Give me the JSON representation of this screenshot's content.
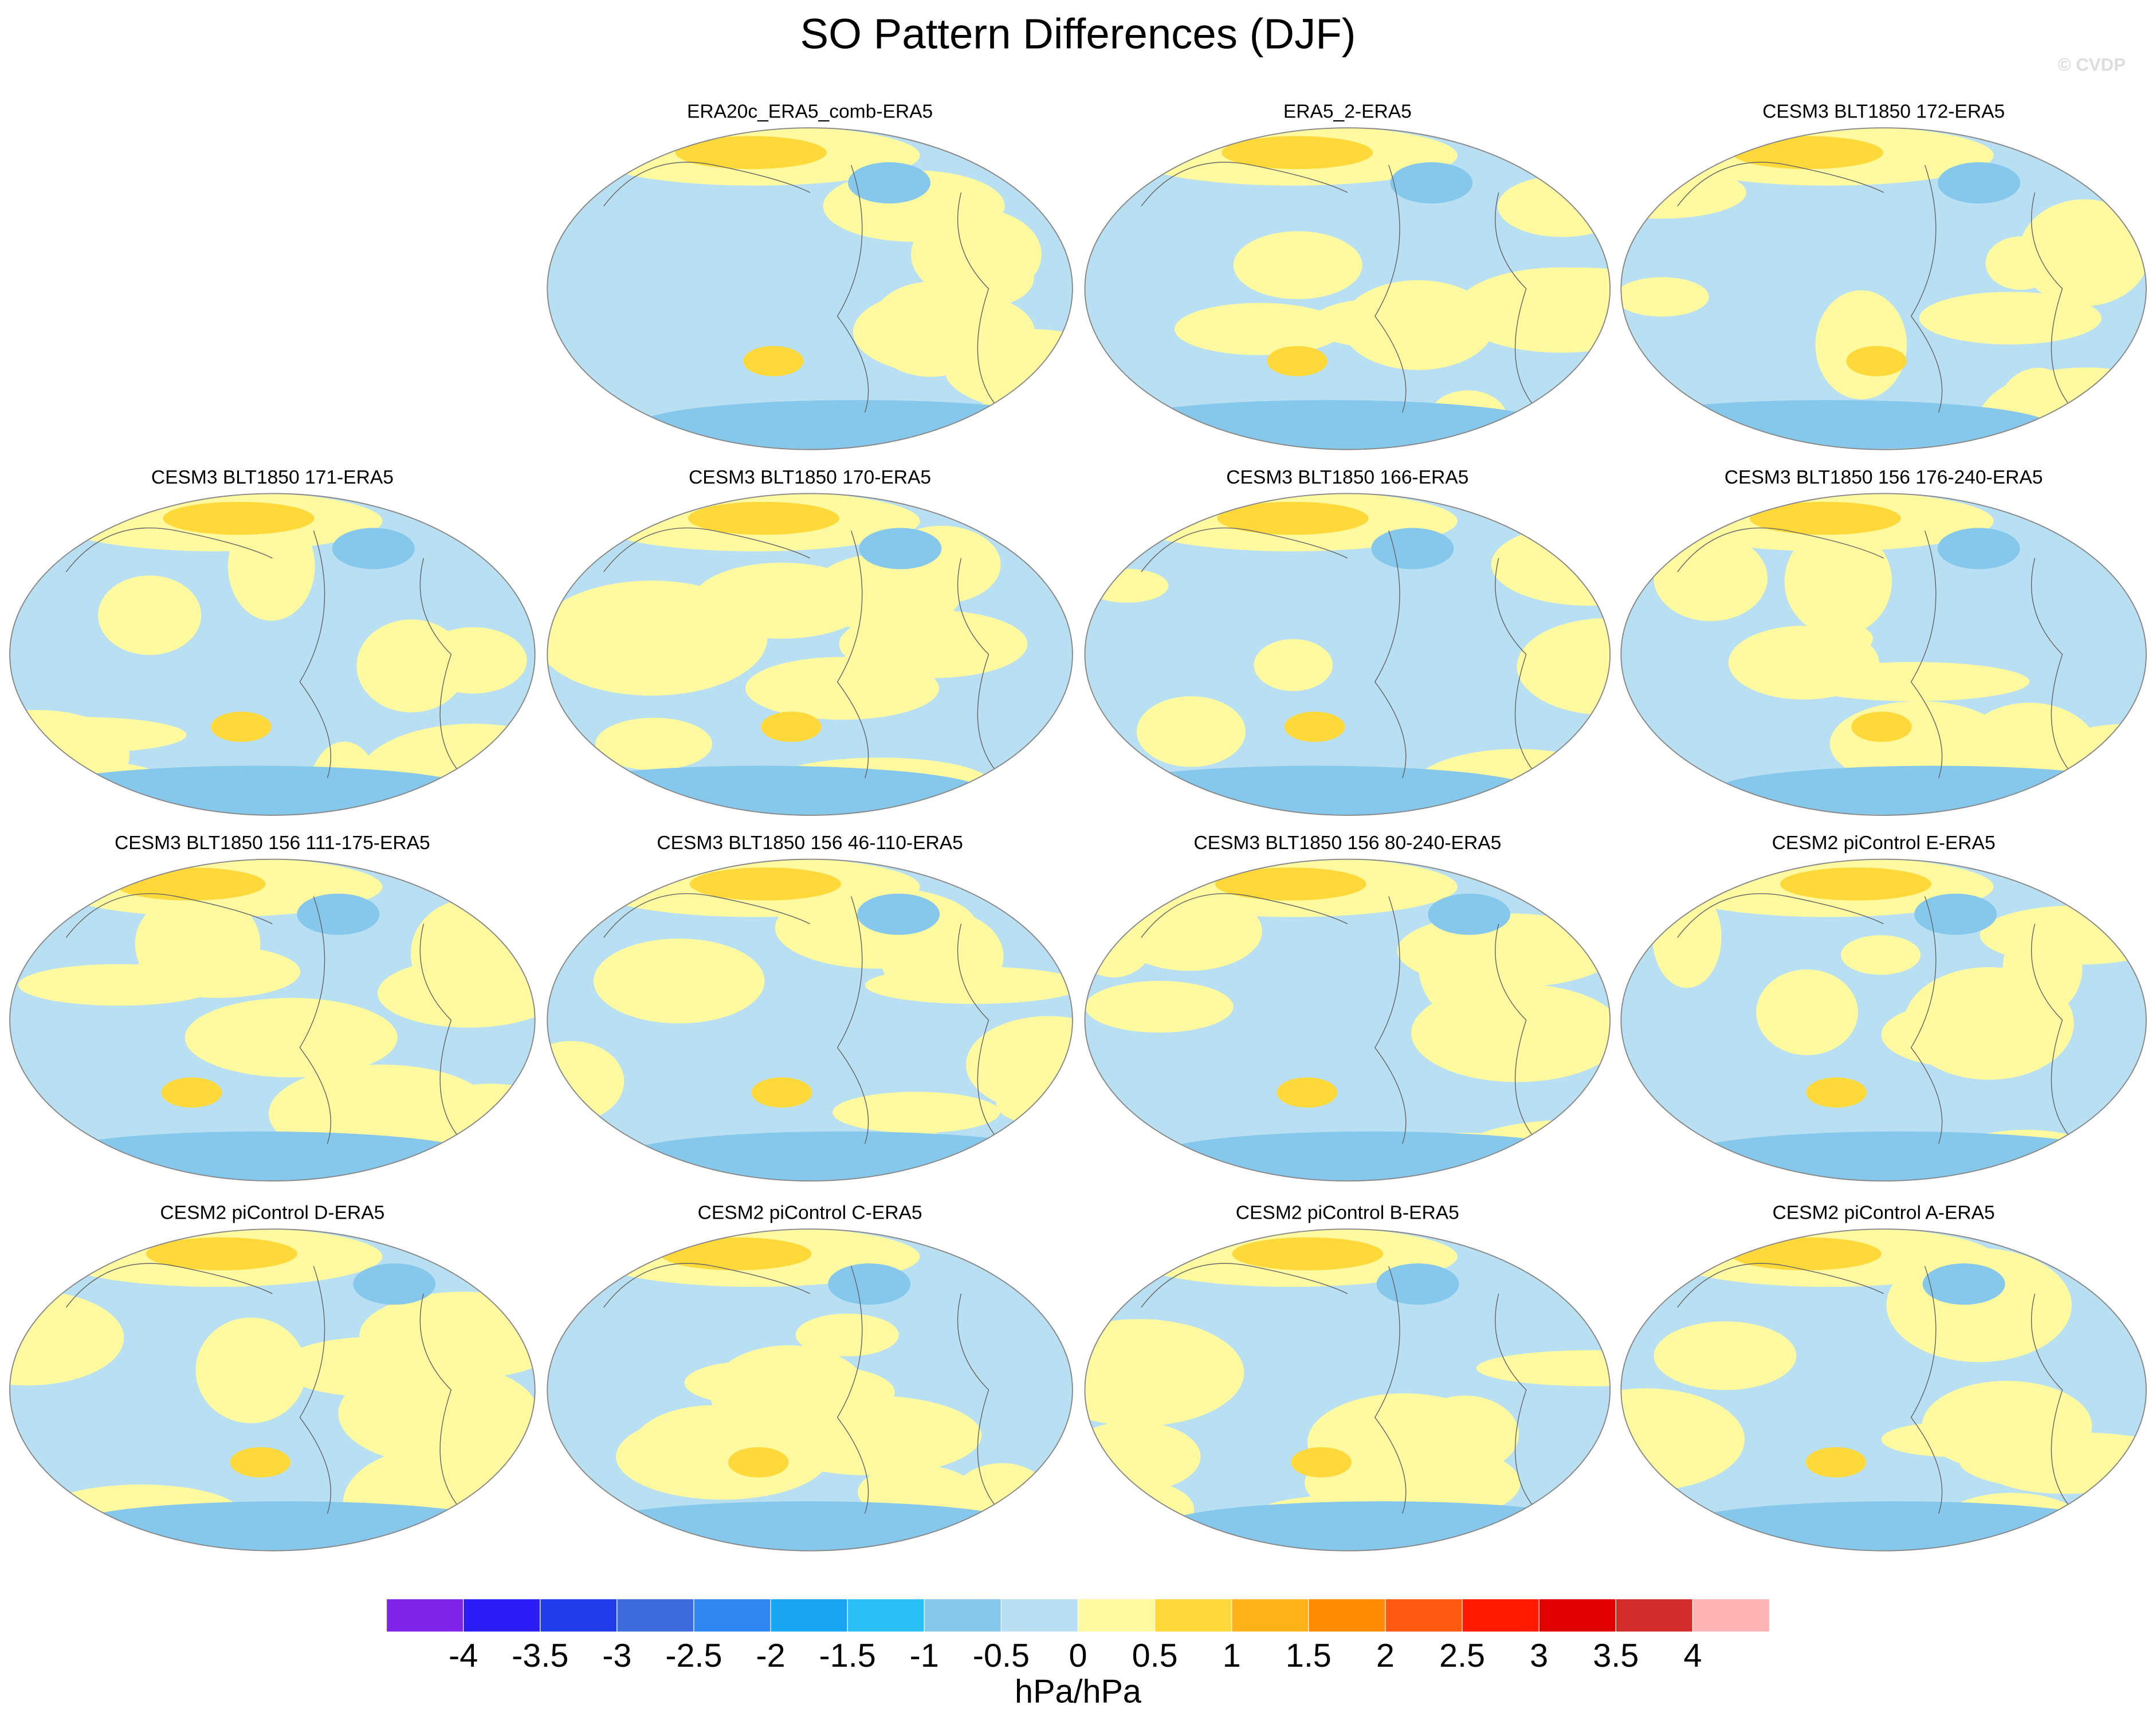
{
  "title": "SO Pattern Differences (DJF)",
  "watermark": "© CVDP",
  "panels": [
    {
      "title": "ERA20c_ERA5_comb-ERA5"
    },
    {
      "title": "ERA5_2-ERA5"
    },
    {
      "title": "CESM3 BLT1850 172-ERA5"
    },
    {
      "title": "CESM3 BLT1850 171-ERA5"
    },
    {
      "title": "CESM3 BLT1850 170-ERA5"
    },
    {
      "title": "CESM3 BLT1850 166-ERA5"
    },
    {
      "title": "CESM3 BLT1850 156 176-240-ERA5"
    },
    {
      "title": "CESM3 BLT1850 156 111-175-ERA5"
    },
    {
      "title": "CESM3 BLT1850 156 46-110-ERA5"
    },
    {
      "title": "CESM3 BLT1850 156 80-240-ERA5"
    },
    {
      "title": "CESM2 piControl E-ERA5"
    },
    {
      "title": "CESM2 piControl D-ERA5"
    },
    {
      "title": "CESM2 piControl C-ERA5"
    },
    {
      "title": "CESM2 piControl B-ERA5"
    },
    {
      "title": "CESM2 piControl A-ERA5"
    }
  ],
  "colorbar": {
    "label": "hPa/hPa",
    "levels": [
      -4,
      -3.5,
      -3,
      -2.5,
      -2,
      -1.5,
      -1,
      -0.5,
      0,
      0.5,
      1,
      1.5,
      2,
      2.5,
      3,
      3.5,
      4
    ],
    "colors": [
      "#7f24e8",
      "#2a1cf5",
      "#1e3de8",
      "#3c6bdc",
      "#2f87f0",
      "#18a6f2",
      "#2ac0f5",
      "#85c8ec",
      "#b8e0f2",
      "#fffaa0",
      "#ffd83a",
      "#ffb319",
      "#ff8c00",
      "#ff5a12",
      "#ff1a00",
      "#e00000",
      "#d22b2b",
      "#ffb4b4"
    ]
  }
}
